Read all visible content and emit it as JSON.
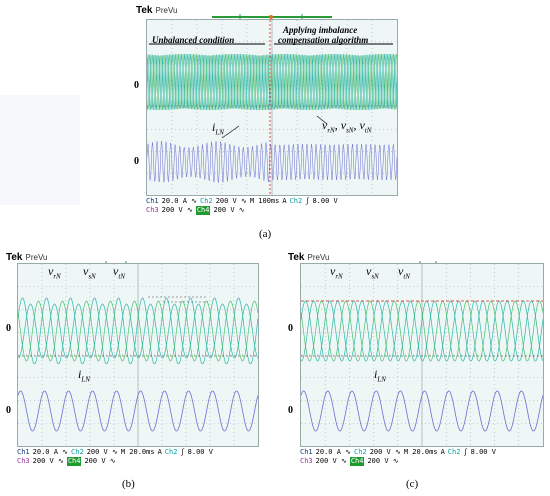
{
  "scopes": [
    {
      "id": "a",
      "brand": "Tek",
      "mode": "PreVu",
      "caption": "(a)",
      "zero_labels": [
        "0",
        "0"
      ],
      "annotations": {
        "left_region": "Unbalanced condition",
        "right_region_line1": "Applying imbalance",
        "right_region_line2": "compensation algorithm",
        "current_label": "i",
        "current_sub": "LN",
        "voltage_label": "v",
        "voltage_subs": [
          "rN",
          "sN",
          "tN"
        ]
      },
      "status_row1": {
        "ch1": "Ch1",
        "ch1_val": "20.0 A ∿",
        "ch2": "Ch2",
        "ch2_val": "200 V ∿",
        "time": "M 100ms",
        "a": "A",
        "trig_ch": "Ch2",
        "trig_sym": "ʃ",
        "trig_val": "8.00 V"
      },
      "status_row2": {
        "ch3": "Ch3",
        "ch3_val": "200 V ∿",
        "ch4": "Ch4",
        "ch4_val": "200 V ∿"
      }
    },
    {
      "id": "b",
      "brand": "Tek",
      "mode": "PreVu",
      "caption": "(b)",
      "zero_labels": [
        "0",
        "0"
      ],
      "annotations": {
        "current_label": "i",
        "current_sub": "LN",
        "voltage_label": "v",
        "voltage_subs": [
          "rN",
          "sN",
          "tN"
        ]
      },
      "status_row1": {
        "ch1": "Ch1",
        "ch1_val": "20.0 A ∿",
        "ch2": "Ch2",
        "ch2_val": "200 V ∿",
        "time": "M 20.0ms",
        "a": "A",
        "trig_ch": "Ch2",
        "trig_sym": "ʃ",
        "trig_val": "8.00 V"
      },
      "status_row2": {
        "ch3": "Ch3",
        "ch3_val": "200 V ∿",
        "ch4": "Ch4",
        "ch4_val": "200 V ∿"
      }
    },
    {
      "id": "c",
      "brand": "Tek",
      "mode": "PreVu",
      "caption": "(c)",
      "zero_labels": [
        "0",
        "0"
      ],
      "annotations": {
        "current_label": "i",
        "current_sub": "LN",
        "voltage_label": "v",
        "voltage_subs": [
          "rN",
          "sN",
          "tN"
        ]
      },
      "status_row1": {
        "ch1": "Ch1",
        "ch1_val": "20.0 A ∿",
        "ch2": "Ch2",
        "ch2_val": "200 V ∿",
        "time": "M 20.0ms",
        "a": "A",
        "trig_ch": "Ch2",
        "trig_sym": "ʃ",
        "trig_val": "8.00 V"
      },
      "status_row2": {
        "ch3": "Ch3",
        "ch3_val": "200 V ∿",
        "ch4": "Ch4",
        "ch4_val": "200 V ∿"
      }
    }
  ],
  "colors": {
    "voltage_teal": "#2fb8a6",
    "voltage_green": "#4fc06a",
    "current_blue": "#6b6fd0",
    "grid": "#9aa3a8",
    "trigger": "#d22020",
    "background": "#eef6f6"
  }
}
